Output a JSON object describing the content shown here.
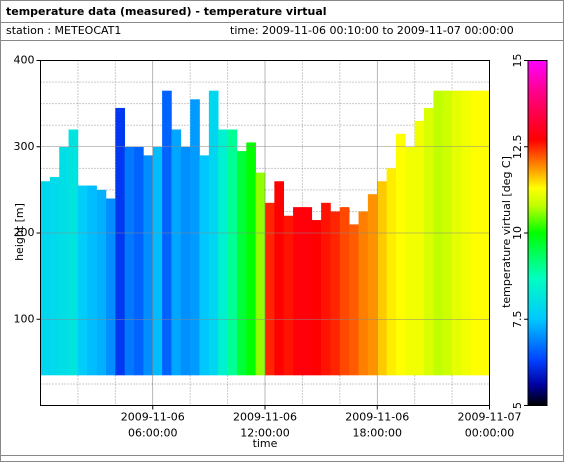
{
  "chart_data": {
    "type": "heatmap",
    "title": "temperature data (measured) - temperature virtual",
    "station": "station : METEOCAT1",
    "time_range": "time: 2009-11-06 00:10:00 to 2009-11-07 00:00:00",
    "xlabel": "time",
    "ylabel": "height [m]",
    "colorbar_label": "temperature virtual [deg C]",
    "x": [
      "2009-11-06 00:00:00",
      "2009-11-06 00:30:00",
      "2009-11-06 01:00:00",
      "2009-11-06 01:30:00",
      "2009-11-06 02:00:00",
      "2009-11-06 02:30:00",
      "2009-11-06 03:00:00",
      "2009-11-06 03:30:00",
      "2009-11-06 04:00:00",
      "2009-11-06 04:30:00",
      "2009-11-06 05:00:00",
      "2009-11-06 05:30:00",
      "2009-11-06 06:00:00",
      "2009-11-06 06:30:00",
      "2009-11-06 07:00:00",
      "2009-11-06 07:30:00",
      "2009-11-06 08:00:00",
      "2009-11-06 08:30:00",
      "2009-11-06 09:00:00",
      "2009-11-06 09:30:00",
      "2009-11-06 10:00:00",
      "2009-11-06 10:30:00",
      "2009-11-06 11:00:00",
      "2009-11-06 11:30:00",
      "2009-11-06 12:00:00",
      "2009-11-06 12:30:00",
      "2009-11-06 13:00:00",
      "2009-11-06 13:30:00",
      "2009-11-06 14:00:00",
      "2009-11-06 14:30:00",
      "2009-11-06 15:00:00",
      "2009-11-06 15:30:00",
      "2009-11-06 16:00:00",
      "2009-11-06 16:30:00",
      "2009-11-06 17:00:00",
      "2009-11-06 17:30:00",
      "2009-11-06 18:00:00",
      "2009-11-06 18:30:00",
      "2009-11-06 19:00:00",
      "2009-11-06 19:30:00",
      "2009-11-06 20:00:00",
      "2009-11-06 20:30:00",
      "2009-11-06 21:00:00",
      "2009-11-06 21:30:00",
      "2009-11-06 22:00:00",
      "2009-11-06 22:30:00",
      "2009-11-06 23:00:00",
      "2009-11-06 23:30:00"
    ],
    "bottom": 35,
    "top": [
      260,
      265,
      300,
      320,
      255,
      255,
      250,
      240,
      345,
      300,
      300,
      290,
      300,
      365,
      320,
      300,
      355,
      290,
      365,
      320,
      320,
      295,
      305,
      270,
      235,
      260,
      220,
      230,
      230,
      215,
      235,
      225,
      230,
      210,
      225,
      245,
      260,
      275,
      315,
      300,
      330,
      345,
      365,
      365,
      365,
      365,
      365,
      365
    ],
    "values": [
      7.8,
      7.9,
      8.0,
      8.1,
      7.6,
      7.4,
      7.3,
      7.0,
      6.2,
      6.8,
      6.6,
      7.0,
      7.4,
      6.6,
      7.2,
      7.0,
      7.1,
      7.5,
      7.8,
      8.4,
      9.0,
      9.6,
      10.0,
      10.6,
      12.5,
      12.7,
      12.6,
      12.8,
      12.8,
      12.7,
      12.6,
      12.5,
      12.3,
      12.2,
      12.0,
      11.9,
      11.6,
      11.4,
      11.3,
      11.2,
      11.2,
      11.0,
      10.8,
      10.9,
      11.1,
      11.2,
      11.3,
      11.3
    ],
    "xlim": [
      "2009-11-06 00:00:00",
      "2009-11-07 00:00:00"
    ],
    "xticks": [
      {
        "value": "2009-11-06 06:00:00",
        "label": [
          "2009-11-06",
          "06:00:00"
        ]
      },
      {
        "value": "2009-11-06 12:00:00",
        "label": [
          "2009-11-06",
          "12:00:00"
        ]
      },
      {
        "value": "2009-11-06 18:00:00",
        "label": [
          "2009-11-06",
          "18:00:00"
        ]
      },
      {
        "value": "2009-11-07 00:00:00",
        "label": [
          "2009-11-07",
          "00:00:00"
        ]
      }
    ],
    "ylim": [
      0,
      400
    ],
    "yticks": [
      100,
      200,
      300,
      400
    ],
    "clim": [
      5,
      15
    ],
    "cticks": [
      5,
      7.5,
      10,
      12.5,
      15
    ],
    "colorscale": [
      [
        5,
        "#000000"
      ],
      [
        5.6,
        "#0000a0"
      ],
      [
        6.3,
        "#0040ff"
      ],
      [
        7.5,
        "#00c8ff"
      ],
      [
        8.7,
        "#00ffc0"
      ],
      [
        10,
        "#00ff00"
      ],
      [
        10.8,
        "#c0ff00"
      ],
      [
        11.3,
        "#ffff00"
      ],
      [
        12,
        "#ff8000"
      ],
      [
        12.7,
        "#ff0000"
      ],
      [
        14,
        "#ff0080"
      ],
      [
        15,
        "#ff00ff"
      ]
    ],
    "grid": true
  }
}
